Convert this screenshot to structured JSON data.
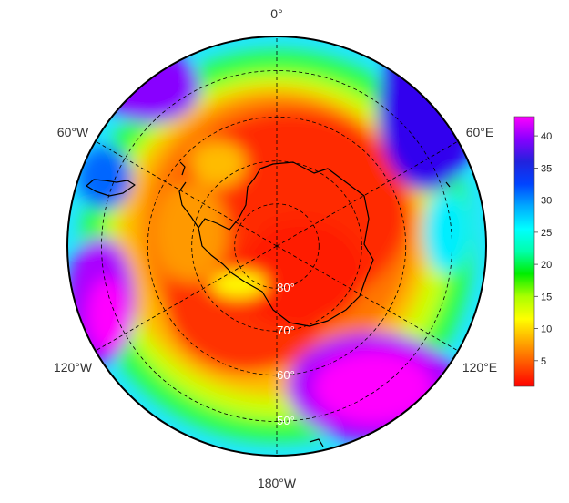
{
  "map": {
    "projection": "south-polar-stereographic",
    "longitude_labels": {
      "top": "0°",
      "upper_left": "60°W",
      "upper_right": "60°E",
      "lower_left": "120°W",
      "lower_right": "120°E",
      "bottom": "180°W"
    },
    "latitude_labels": [
      "80°",
      "70°",
      "60°",
      "50°"
    ],
    "latitude_circles": [
      80,
      70,
      60,
      50
    ],
    "outer_latitude": 43,
    "grid": "dashed",
    "coastlines": "Antarctica, southern South America",
    "colormap": "rainbow",
    "colorbar": {
      "min": 1,
      "max": 43,
      "ticks": [
        "5",
        "10",
        "15",
        "20",
        "25",
        "30",
        "35",
        "40"
      ],
      "tick_values": [
        5,
        10,
        15,
        20,
        25,
        30,
        35,
        40
      ],
      "colors": [
        "#ff0000",
        "#ff5500",
        "#ffaa00",
        "#ffff00",
        "#aaff00",
        "#00ee00",
        "#00ffaa",
        "#00ffff",
        "#00aaff",
        "#0044ff",
        "#2222dd",
        "#8800ff",
        "#ff00ff"
      ]
    }
  }
}
